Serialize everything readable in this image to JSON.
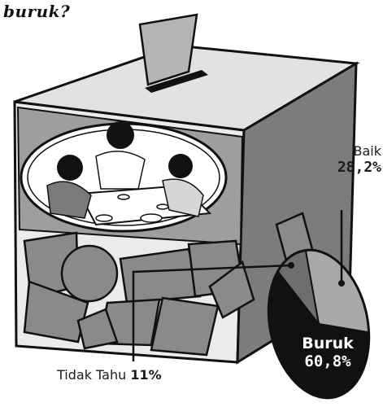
{
  "title": "buruk?",
  "chart_data": {
    "type": "pie",
    "title": "buruk?",
    "slices": [
      {
        "label": "Baik",
        "value": 28.2,
        "display": "28,2%",
        "color": "#a9a9a9"
      },
      {
        "label": "Buruk",
        "value": 60.8,
        "display": "60,8%",
        "color": "#111111"
      },
      {
        "label": "Tidak Tahu",
        "value": 11,
        "display": "11%",
        "color": "#6e6e6e"
      }
    ]
  },
  "colors": {
    "box_front": "#ebebeb",
    "box_top": "#e2e2e2",
    "box_side": "#7c7c7c",
    "box_band": "#9e9e9e",
    "ballots": "#8a8a8a",
    "outline": "#111111"
  }
}
